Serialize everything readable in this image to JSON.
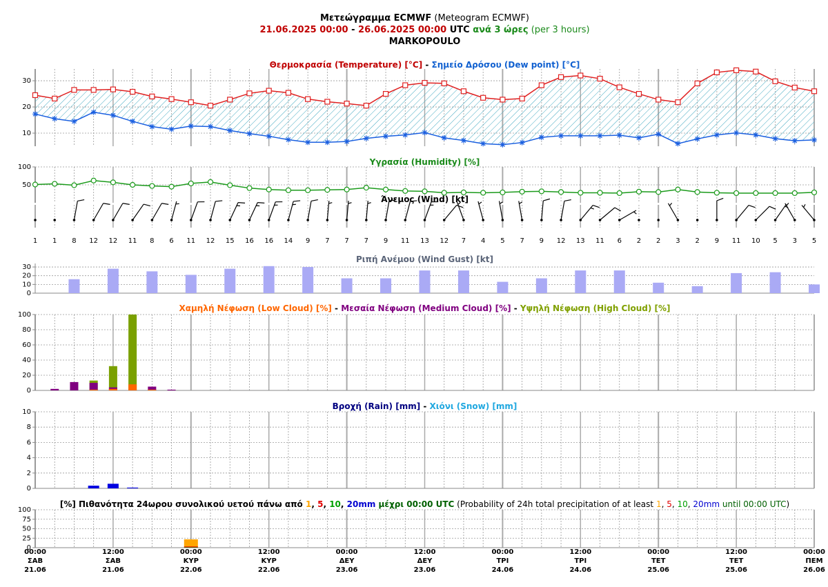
{
  "header": {
    "lines": [
      [
        {
          "text": "Μετεώγραμμα ECMWF",
          "color": "#000000",
          "bold": true
        },
        {
          "text": " (Meteogram ECMWF)",
          "color": "#000000",
          "bold": false
        }
      ],
      [
        {
          "text": "21.06.2025 00:00",
          "color": "#c00000",
          "bold": true
        },
        {
          "text": " - ",
          "color": "#000000",
          "bold": true
        },
        {
          "text": "26.06.2025 00:00",
          "color": "#c00000",
          "bold": true
        },
        {
          "text": " UTC",
          "color": "#000000",
          "bold": true
        },
        {
          "text": " ανά 3 ώρες",
          "color": "#1a8a1a",
          "bold": true
        },
        {
          "text": " (per 3 hours)",
          "color": "#1a8a1a",
          "bold": false
        }
      ],
      [
        {
          "text": "MARKOPOULO",
          "color": "#000000",
          "bold": true
        }
      ]
    ]
  },
  "chart_data": [
    {
      "type": "line",
      "title": [
        {
          "text": "Θερμοκρασία (Temperature) [°C]",
          "color": "#c00000",
          "bold": true
        },
        {
          "text": " - ",
          "color": "#000000",
          "bold": true
        },
        {
          "text": "Σημείο Δρόσου (Dew point) [°C]",
          "color": "#1060d0",
          "bold": true
        }
      ],
      "ylim": [
        5,
        34.5
      ],
      "yticks": [
        10,
        20,
        30
      ],
      "fill_between": true,
      "hatch_color": "#40a8c0",
      "series": [
        {
          "color": "#e02020",
          "marker": "square",
          "values": [
            24.5,
            23.2,
            26.5,
            26.5,
            26.7,
            25.8,
            24,
            23,
            21.8,
            20.5,
            22.8,
            25.2,
            26.2,
            25.4,
            23,
            22,
            21.3,
            20.5,
            25,
            28.3,
            29.2,
            29,
            26,
            23.5,
            22.8,
            23.2,
            28.3,
            31.4,
            32,
            30.8,
            27.5,
            25,
            22.8,
            21.8,
            29,
            33.2,
            34,
            33.5,
            29.8,
            27.4,
            26
          ]
        },
        {
          "color": "#1a5fe0",
          "marker": "star",
          "values": [
            17.3,
            15.5,
            14.5,
            18,
            16.8,
            14.5,
            12.5,
            11.5,
            12.7,
            12.5,
            11,
            9.8,
            8.8,
            7.5,
            6.5,
            6.5,
            6.8,
            8,
            8.8,
            9.3,
            10.2,
            8.2,
            7.2,
            6,
            5.6,
            6.4,
            8.4,
            9,
            9,
            9,
            9.2,
            8.2,
            9.6,
            6,
            7.8,
            9.3,
            10.1,
            9.3,
            7.9,
            7.1,
            7.4
          ]
        }
      ]
    },
    {
      "type": "line",
      "title": [
        {
          "text": "Υγρασία (Humidity) [%]",
          "color": "#1a8a1a",
          "bold": true
        }
      ],
      "ylim": [
        0,
        100
      ],
      "yticks": [
        50,
        100
      ],
      "series": [
        {
          "color": "#1a9a1a",
          "marker": "circle",
          "values": [
            51,
            53,
            49,
            62,
            57,
            50,
            47,
            45,
            54,
            58,
            49,
            41,
            37,
            35,
            35,
            36,
            37,
            42,
            37,
            33,
            32,
            28,
            29,
            28,
            29,
            31,
            32,
            30,
            28,
            28,
            27,
            31,
            30,
            37,
            30,
            28,
            27,
            27,
            27,
            27,
            29
          ]
        }
      ]
    },
    {
      "type": "wind",
      "title": [
        {
          "text": "Άνεμος (Wind) [kt]",
          "color": "#000000",
          "bold": true
        }
      ],
      "color": "#000000",
      "speeds": [
        1,
        1,
        8,
        12,
        12,
        11,
        8,
        6,
        11,
        12,
        15,
        16,
        16,
        14,
        9,
        7,
        7,
        7,
        9,
        11,
        13,
        12,
        7,
        4,
        5,
        7,
        9,
        12,
        13,
        11,
        6,
        2,
        2,
        3,
        2,
        9,
        11,
        10,
        5,
        3,
        5
      ],
      "directions": [
        0,
        0,
        10,
        30,
        30,
        35,
        30,
        15,
        20,
        15,
        25,
        25,
        20,
        15,
        10,
        5,
        5,
        5,
        10,
        15,
        20,
        40,
        340,
        345,
        350,
        350,
        5,
        10,
        40,
        50,
        60,
        300,
        290,
        330,
        350,
        0,
        40,
        45,
        35,
        330,
        320
      ]
    },
    {
      "type": "bar",
      "title": [
        {
          "text": "Ριπή Ανέμου (Wind Gust) [kt]",
          "color": "#5a6478",
          "bold": true
        }
      ],
      "ylim": [
        0,
        34
      ],
      "yticks": [
        0,
        10,
        20,
        30
      ],
      "series": [
        {
          "color": "#aaaaf5",
          "values": [
            null,
            null,
            16,
            null,
            28,
            null,
            25,
            null,
            21,
            null,
            28,
            null,
            31,
            null,
            30,
            null,
            17,
            null,
            17,
            null,
            26,
            null,
            26,
            null,
            13,
            null,
            17,
            null,
            26,
            null,
            26,
            null,
            12,
            null,
            8,
            null,
            23,
            null,
            24,
            null,
            10
          ]
        }
      ]
    },
    {
      "type": "bar",
      "title": [
        {
          "text": "Χαμηλή Νέφωση (Low Cloud) [%]",
          "color": "#ff6600",
          "bold": true
        },
        {
          "text": " - ",
          "color": "#000000",
          "bold": true
        },
        {
          "text": "Μεσαία Νέφωση (Medium Cloud) [%]",
          "color": "#800080",
          "bold": true
        },
        {
          "text": " - ",
          "color": "#000000",
          "bold": true
        },
        {
          "text": "Υψηλή Νέφωση (High Cloud) [%]",
          "color": "#80a000",
          "bold": true
        }
      ],
      "ylim": [
        0,
        100
      ],
      "yticks": [
        0,
        20,
        40,
        60,
        80,
        100
      ],
      "series": [
        {
          "color": "#7aa000",
          "values": [
            0,
            0,
            0,
            13,
            32,
            100,
            0,
            0,
            0,
            0,
            0,
            0,
            0,
            0,
            0,
            0,
            0,
            0,
            0,
            0,
            0,
            0,
            0,
            0,
            0,
            0,
            0,
            0,
            0,
            0,
            0,
            0,
            0,
            0,
            0,
            0,
            0,
            0,
            0,
            0,
            0
          ]
        },
        {
          "color": "#800080",
          "values": [
            0,
            2,
            11,
            10,
            4,
            0,
            5,
            1,
            0,
            0,
            0,
            0,
            0,
            0,
            0,
            0,
            0,
            0,
            0,
            0,
            0,
            0,
            0,
            0,
            0,
            0,
            0,
            0,
            0,
            0,
            0,
            0,
            0,
            0,
            0,
            0,
            0,
            0,
            0,
            0,
            0
          ]
        },
        {
          "color": "#ff6600",
          "values": [
            0,
            0,
            0,
            1,
            2,
            8,
            1,
            0,
            0,
            0,
            0,
            0,
            0,
            0,
            0,
            0,
            0,
            0,
            0,
            0,
            0,
            0,
            0,
            0,
            0,
            0,
            0,
            0,
            0,
            0,
            0,
            0,
            0,
            0,
            0,
            0,
            0,
            0,
            0,
            0,
            0
          ]
        }
      ]
    },
    {
      "type": "bar",
      "title": [
        {
          "text": "Βροχή (Rain) [mm]",
          "color": "#000080",
          "bold": true
        },
        {
          "text": " - ",
          "color": "#000000",
          "bold": true
        },
        {
          "text": "Χιόνι (Snow) [mm]",
          "color": "#20a8e0",
          "bold": true
        }
      ],
      "ylim": [
        0,
        10
      ],
      "yticks": [
        0,
        2,
        4,
        6,
        8,
        10
      ],
      "series": [
        {
          "color": "#0000e0",
          "values": [
            0,
            0,
            0,
            0.35,
            0.6,
            0.1,
            0,
            0,
            0,
            0,
            0,
            0,
            0,
            0,
            0,
            0,
            0,
            0,
            0,
            0,
            0,
            0,
            0,
            0,
            0,
            0,
            0,
            0,
            0,
            0,
            0,
            0,
            0,
            0,
            0,
            0,
            0,
            0,
            0,
            0,
            0
          ]
        },
        {
          "color": "#20a8e0",
          "values": [
            0,
            0,
            0,
            0,
            0,
            0,
            0,
            0,
            0,
            0,
            0,
            0,
            0,
            0,
            0,
            0,
            0,
            0,
            0,
            0,
            0,
            0,
            0,
            0,
            0,
            0,
            0,
            0,
            0,
            0,
            0,
            0,
            0,
            0,
            0,
            0,
            0,
            0,
            0,
            0,
            0
          ]
        }
      ]
    },
    {
      "type": "bar",
      "title": [
        {
          "text": "[%] Πιθανότητα 24ωρου συνολικού υετού πάνω από ",
          "color": "#000000",
          "bold": true
        },
        {
          "text": "1",
          "color": "#ffa500",
          "bold": true
        },
        {
          "text": ", ",
          "color": "#000000",
          "bold": true
        },
        {
          "text": "5",
          "color": "#e00000",
          "bold": true
        },
        {
          "text": ", ",
          "color": "#000000",
          "bold": true
        },
        {
          "text": "10",
          "color": "#00a000",
          "bold": true
        },
        {
          "text": ", ",
          "color": "#000000",
          "bold": true
        },
        {
          "text": "20mm",
          "color": "#0000d0",
          "bold": true
        },
        {
          "text": " μέχρι 00:00 UTC",
          "color": "#006000",
          "bold": true
        },
        {
          "text": " (Probability of 24h total precipitation of at least ",
          "color": "#000000",
          "bold": false
        },
        {
          "text": "1",
          "color": "#ffa500",
          "bold": false
        },
        {
          "text": ", ",
          "color": "#000000",
          "bold": false
        },
        {
          "text": "5",
          "color": "#e00000",
          "bold": false
        },
        {
          "text": ", ",
          "color": "#000000",
          "bold": false
        },
        {
          "text": "10",
          "color": "#00a000",
          "bold": false
        },
        {
          "text": ", ",
          "color": "#000000",
          "bold": false
        },
        {
          "text": "20mm",
          "color": "#0000d0",
          "bold": false
        },
        {
          "text": " until 00:00 UTC",
          "color": "#006000",
          "bold": false
        },
        {
          "text": ")",
          "color": "#000000",
          "bold": false
        }
      ],
      "ylim": [
        0,
        100
      ],
      "yticks": [
        0,
        25,
        50,
        75,
        100
      ],
      "series": [
        {
          "color": "#ffa500",
          "values": [
            null,
            null,
            null,
            null,
            null,
            null,
            null,
            null,
            22,
            null,
            null,
            null,
            null,
            null,
            null,
            null,
            0,
            null,
            null,
            null,
            null,
            null,
            null,
            null,
            0,
            null,
            null,
            null,
            null,
            null,
            null,
            null,
            0,
            null,
            null,
            null,
            null,
            null,
            null,
            null,
            0
          ]
        },
        {
          "color": "#e00000",
          "values": [
            null,
            null,
            null,
            null,
            null,
            null,
            null,
            null,
            3,
            null,
            null,
            null,
            null,
            null,
            null,
            null,
            0,
            null,
            null,
            null,
            null,
            null,
            null,
            null,
            0,
            null,
            null,
            null,
            null,
            null,
            null,
            null,
            0,
            null,
            null,
            null,
            null,
            null,
            null,
            null,
            0
          ]
        },
        {
          "color": "#00a000",
          "values": [
            null,
            null,
            null,
            null,
            null,
            null,
            null,
            null,
            1,
            null,
            null,
            null,
            null,
            null,
            null,
            null,
            0,
            null,
            null,
            null,
            null,
            null,
            null,
            null,
            0,
            null,
            null,
            null,
            null,
            null,
            null,
            null,
            0,
            null,
            null,
            null,
            null,
            null,
            null,
            null,
            0
          ]
        },
        {
          "color": "#0000d0",
          "values": [
            null,
            null,
            null,
            null,
            null,
            null,
            null,
            null,
            0,
            null,
            null,
            null,
            null,
            null,
            null,
            null,
            0,
            null,
            null,
            null,
            null,
            null,
            null,
            null,
            0,
            null,
            null,
            null,
            null,
            null,
            null,
            null,
            0,
            null,
            null,
            null,
            null,
            null,
            null,
            null,
            0
          ]
        }
      ],
      "categories": [
        [
          "00:00",
          "ΣΑΒ",
          "21.06"
        ],
        null,
        null,
        null,
        [
          "12:00",
          "ΣΑΒ",
          "21.06"
        ],
        null,
        null,
        null,
        [
          "00:00",
          "ΚΥΡ",
          "22.06"
        ],
        null,
        null,
        null,
        [
          "12:00",
          "ΚΥΡ",
          "22.06"
        ],
        null,
        null,
        null,
        [
          "00:00",
          "ΔΕΥ",
          "23.06"
        ],
        null,
        null,
        null,
        [
          "12:00",
          "ΔΕΥ",
          "23.06"
        ],
        null,
        null,
        null,
        [
          "00:00",
          "ΤΡΙ",
          "24.06"
        ],
        null,
        null,
        null,
        [
          "12:00",
          "ΤΡΙ",
          "24.06"
        ],
        null,
        null,
        null,
        [
          "00:00",
          "ΤΕΤ",
          "25.06"
        ],
        null,
        null,
        null,
        [
          "12:00",
          "ΤΕΤ",
          "25.06"
        ],
        null,
        null,
        null,
        [
          "00:00",
          "ΠΕΜ",
          "26.06"
        ]
      ]
    }
  ]
}
